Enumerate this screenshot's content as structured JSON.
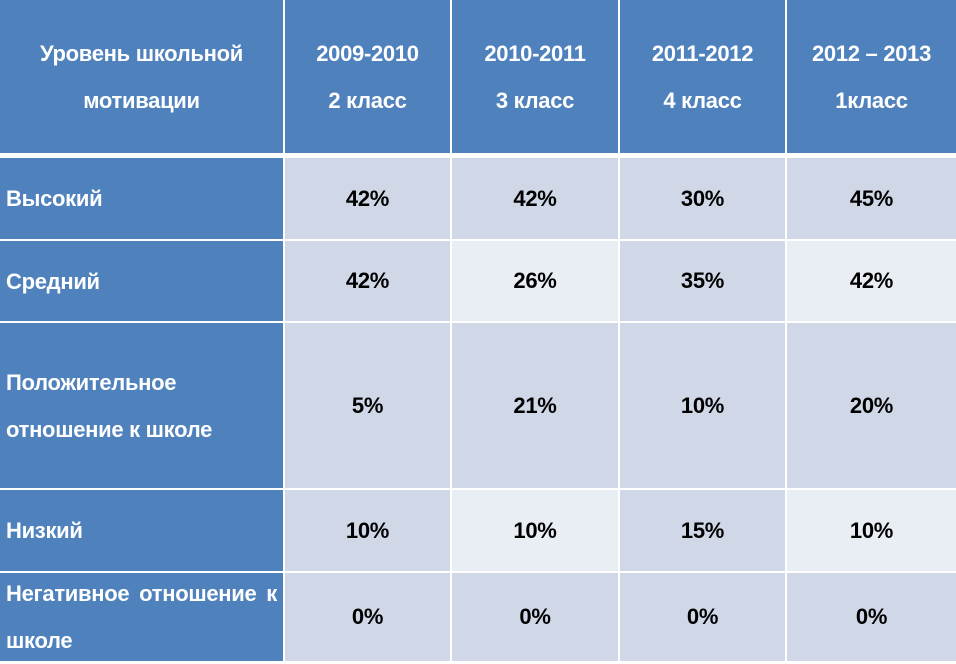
{
  "table": {
    "header": {
      "level_line1": "Уровень школьной",
      "level_line2": "мотивации",
      "columns": [
        {
          "year": "2009-2010",
          "grade": "2 класс"
        },
        {
          "year": "2010-2011",
          "grade": "3 класс"
        },
        {
          "year": "2011-2012",
          "grade": "4 класс"
        },
        {
          "year": "2012 – 2013",
          "grade": "1класс"
        }
      ]
    },
    "rows": [
      {
        "label": "Высокий",
        "values": [
          "42%",
          "42%",
          "30%",
          "45%"
        ]
      },
      {
        "label": "Средний",
        "values": [
          "42%",
          "26%",
          "35%",
          "42%"
        ]
      },
      {
        "label": "Положительное отношение к школе",
        "values": [
          "5%",
          "21%",
          "10%",
          "20%"
        ]
      },
      {
        "label": "Низкий",
        "values": [
          "10%",
          "10%",
          "15%",
          "10%"
        ]
      },
      {
        "label": "Негативное отношение к школе",
        "values": [
          "0%",
          "0%",
          "0%",
          "0%"
        ]
      }
    ]
  },
  "colors": {
    "header_blue": "#4f81bd",
    "cell_dark": "#d0d8e8",
    "cell_light": "#e9edf4"
  }
}
